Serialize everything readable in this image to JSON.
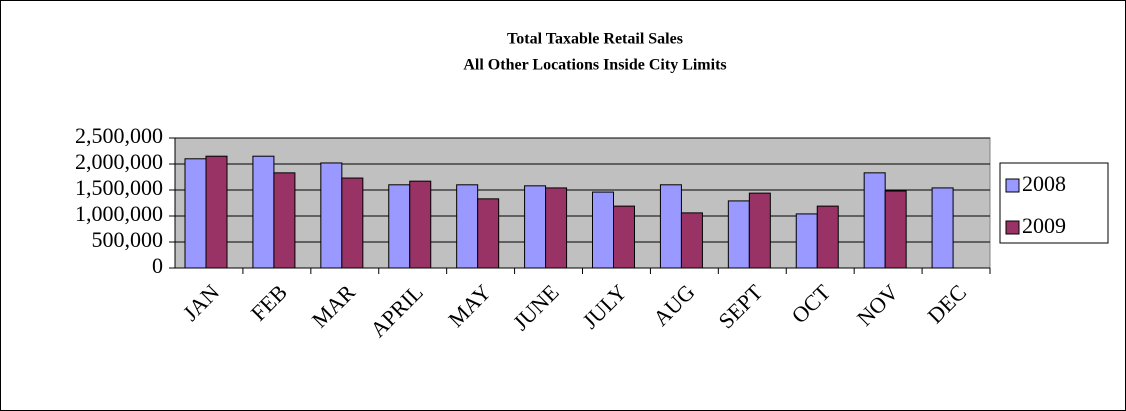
{
  "chart_data": {
    "type": "bar",
    "title": "Total Taxable Retail Sales",
    "subtitle": "All Other Locations Inside City Limits",
    "categories": [
      "JAN",
      "FEB",
      "MAR",
      "APRIL",
      "MAY",
      "JUNE",
      "JULY",
      "AUG",
      "SEPT",
      "OCT",
      "NOV",
      "DEC"
    ],
    "series": [
      {
        "name": "2008",
        "color": "#9999ff",
        "values": [
          2100000,
          2150000,
          2020000,
          1600000,
          1600000,
          1580000,
          1460000,
          1600000,
          1290000,
          1040000,
          1830000,
          1540000
        ]
      },
      {
        "name": "2009",
        "color": "#993366",
        "values": [
          2150000,
          1830000,
          1730000,
          1670000,
          1330000,
          1540000,
          1190000,
          1060000,
          1440000,
          1190000,
          1480000,
          null
        ]
      }
    ],
    "ylim": [
      0,
      2500000
    ],
    "yticks": [
      0,
      {
        "value": 500000,
        "label": "500,000"
      },
      {
        "value": 1000000,
        "label": "1,000,000"
      },
      {
        "value": 1500000,
        "label": "1,500,000"
      },
      {
        "value": 2000000,
        "label": "2,000,000"
      },
      {
        "value": 2500000,
        "label": "2,500,000"
      }
    ],
    "grid": true,
    "legend": "right"
  }
}
